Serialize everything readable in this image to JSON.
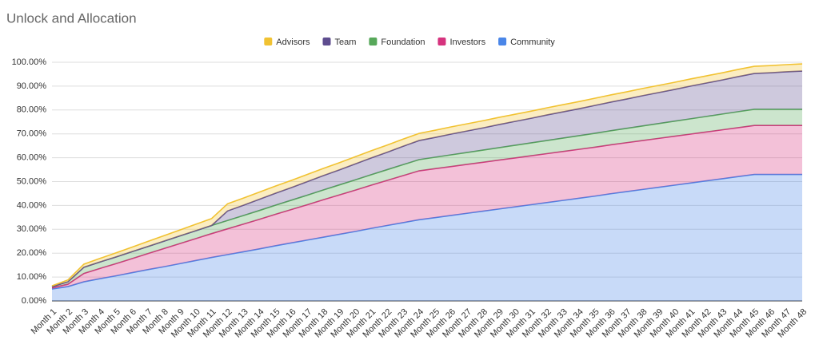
{
  "chart_data": {
    "type": "stacked-area",
    "title": "Unlock and Allocation",
    "categories": [
      "Month 1",
      "Month 2",
      "Month 3",
      "Month 4",
      "Month 5",
      "Month 6",
      "Month 7",
      "Month 8",
      "Month 9",
      "Month 10",
      "Month 11",
      "Month 12",
      "Month 13",
      "Month 14",
      "Month 15",
      "Month 16",
      "Month 17",
      "Month 18",
      "Month 19",
      "Month 20",
      "Month 21",
      "Month 22",
      "Month 23",
      "Month 24",
      "Month 25",
      "Month 26",
      "Month 27",
      "Month 28",
      "Month 29",
      "Month 30",
      "Month 31",
      "Month 32",
      "Month 33",
      "Month 34",
      "Month 35",
      "Month 36",
      "Month 37",
      "Month 38",
      "Month 39",
      "Month 40",
      "Month 41",
      "Month 42",
      "Month 43",
      "Month 44",
      "Month 45",
      "Month 46",
      "Month 47",
      "Month 48"
    ],
    "series": [
      {
        "name": "Community",
        "color": "#4a86e8",
        "values": [
          5,
          6,
          8,
          9.3,
          10.5,
          11.8,
          13.1,
          14.3,
          15.6,
          16.9,
          18.2,
          19.4,
          20.6,
          21.8,
          23.1,
          24.3,
          25.5,
          26.7,
          27.9,
          29.1,
          30.4,
          31.6,
          32.8,
          34.0,
          34.9,
          35.8,
          36.7,
          37.6,
          38.5,
          39.4,
          40.3,
          41.2,
          42.1,
          43.0,
          43.9,
          44.9,
          45.8,
          46.7,
          47.6,
          48.5,
          49.4,
          50.3,
          51.2,
          52.1,
          53.0,
          53,
          53,
          53
        ]
      },
      {
        "name": "Investors",
        "color": "#d6337e",
        "values": [
          0.5,
          1,
          3.5,
          4.3,
          5.1,
          5.9,
          6.7,
          7.6,
          8.4,
          9.2,
          10.0,
          10.8,
          11.6,
          12.4,
          13.2,
          14.0,
          14.8,
          15.7,
          16.5,
          17.3,
          18.1,
          18.9,
          19.7,
          20.5,
          20.5,
          20.5,
          20.5,
          20.5,
          20.5,
          20.5,
          20.5,
          20.5,
          20.5,
          20.5,
          20.5,
          20.5,
          20.5,
          20.5,
          20.5,
          20.5,
          20.5,
          20.5,
          20.5,
          20.5,
          20.5,
          20.5,
          20.5,
          20.5
        ]
      },
      {
        "name": "Foundation",
        "color": "#57a85a",
        "values": [
          0.5,
          1,
          2.6,
          2.7,
          2.8,
          2.9,
          3.0,
          3.1,
          3.2,
          3.3,
          3.4,
          3.5,
          3.6,
          3.7,
          3.8,
          3.9,
          4.0,
          4.1,
          4.2,
          4.3,
          4.4,
          4.5,
          4.6,
          4.7,
          4.8,
          4.9,
          5.0,
          5.1,
          5.2,
          5.3,
          5.4,
          5.5,
          5.6,
          5.7,
          5.8,
          5.9,
          6.0,
          6.1,
          6.2,
          6.3,
          6.4,
          6.5,
          6.6,
          6.7,
          6.8,
          6.8,
          6.8,
          6.8
        ]
      },
      {
        "name": "Team",
        "color": "#5e4d8f",
        "values": [
          0,
          0,
          0,
          0,
          0,
          0,
          0,
          0,
          0,
          0,
          0,
          4,
          4.3,
          4.7,
          5.0,
          5.3,
          5.7,
          6.0,
          6.3,
          6.7,
          7.0,
          7.3,
          7.7,
          8.0,
          8.3,
          8.7,
          9.0,
          9.3,
          9.7,
          10.0,
          10.3,
          10.7,
          11.0,
          11.3,
          11.7,
          12.0,
          12.3,
          12.7,
          13.0,
          13.3,
          13.7,
          14.0,
          14.3,
          14.7,
          15.0,
          15.3,
          15.7,
          16.0
        ]
      },
      {
        "name": "Advisors",
        "color": "#f1c232",
        "values": [
          0.3,
          0.8,
          1.3,
          1.5,
          1.7,
          1.9,
          2.1,
          2.3,
          2.5,
          2.7,
          2.9,
          3.0,
          3.0,
          3.0,
          3.0,
          3.0,
          3.0,
          3.0,
          3.0,
          3.0,
          3.0,
          3.0,
          3.0,
          3.0,
          3.0,
          3.0,
          3.0,
          3.0,
          3.0,
          3.0,
          3.0,
          3.0,
          3.0,
          3.0,
          3.0,
          3.0,
          3.0,
          3.0,
          3.0,
          3.0,
          3.0,
          3.0,
          3.0,
          3.0,
          3.0,
          3.0,
          3.0,
          3.0
        ]
      }
    ],
    "ylim": [
      0,
      100
    ],
    "yticks": [
      {
        "value": 0,
        "label": "0.00%"
      },
      {
        "value": 10,
        "label": "10.00%"
      },
      {
        "value": 20,
        "label": "20.00%"
      },
      {
        "value": 30,
        "label": "30.00%"
      },
      {
        "value": 40,
        "label": "40.00%"
      },
      {
        "value": 50,
        "label": "50.00%"
      },
      {
        "value": 60,
        "label": "60.00%"
      },
      {
        "value": 70,
        "label": "70.00%"
      },
      {
        "value": 80,
        "label": "80.00%"
      },
      {
        "value": 90,
        "label": "90.00%"
      },
      {
        "value": 100,
        "label": "100.00%"
      }
    ],
    "grid": true,
    "legend": "top"
  }
}
